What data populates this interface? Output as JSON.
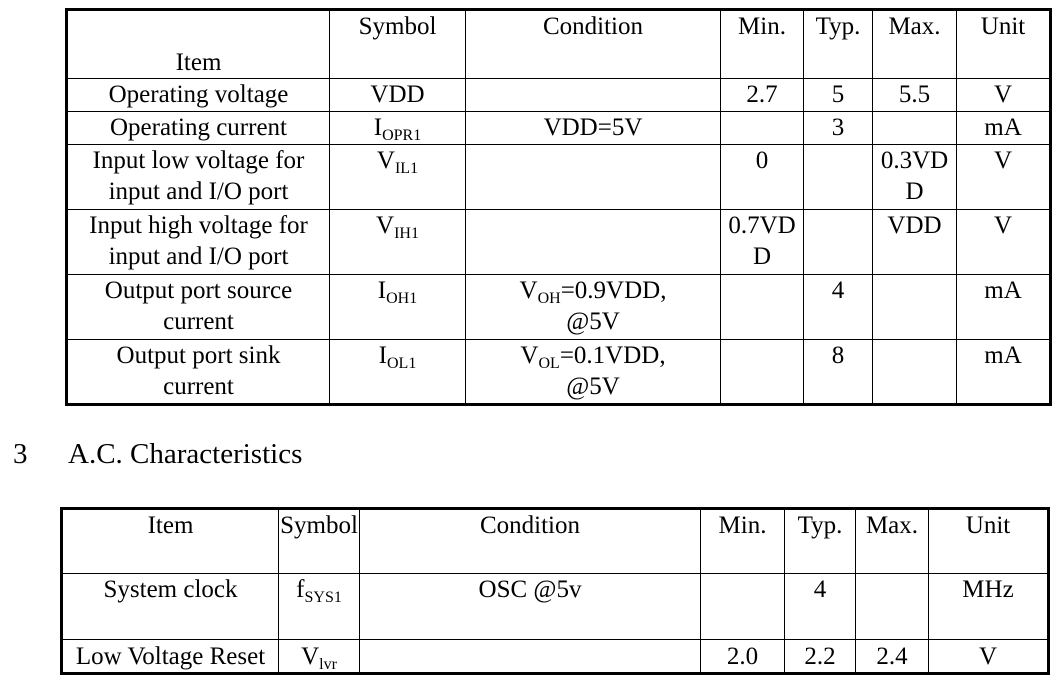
{
  "tables": [
    {
      "columns": [
        "Item",
        "Symbol",
        "Condition",
        "Min.",
        "Typ.",
        "Max.",
        "Unit"
      ],
      "rows": [
        [
          {
            "lines": [
              "Operating voltage"
            ]
          },
          {
            "base": "VDD"
          },
          null,
          "2.7",
          "5",
          "5.5",
          "V"
        ],
        [
          {
            "lines": [
              "Operating current"
            ]
          },
          {
            "base": "I",
            "sub": "OPR1"
          },
          {
            "lines": [
              "VDD=5V"
            ]
          },
          null,
          "3",
          null,
          "mA"
        ],
        [
          {
            "lines": [
              "Input low voltage for",
              "input and I/O port"
            ]
          },
          {
            "base": "V",
            "sub": "IL1"
          },
          null,
          "0",
          null,
          "0.3VDD",
          "V"
        ],
        [
          {
            "lines": [
              "Input high voltage for",
              "input and I/O port"
            ]
          },
          {
            "base": "V",
            "sub": "IH1"
          },
          null,
          "0.7VDD",
          null,
          "VDD",
          "V"
        ],
        [
          {
            "lines": [
              "Output port source",
              "current"
            ]
          },
          {
            "base": "I",
            "sub": "OH1"
          },
          {
            "base": "V",
            "sub": "OH",
            "lines": [
              "=0.9VDD,",
              "@5V"
            ]
          },
          null,
          "4",
          null,
          "mA"
        ],
        [
          {
            "lines": [
              "Output port sink",
              "current"
            ]
          },
          {
            "base": "I",
            "sub": "OL1"
          },
          {
            "base": "V",
            "sub": "OL",
            "lines": [
              "=0.1VDD,",
              "@5V"
            ]
          },
          null,
          "8",
          null,
          "mA"
        ]
      ]
    },
    {
      "columns": [
        "Item",
        "Symbol",
        "Condition",
        "Min.",
        "Typ.",
        "Max.",
        "Unit"
      ],
      "rows": [
        [
          {
            "lines": [
              "System clock"
            ]
          },
          {
            "base": "f",
            "sub": "SYS1"
          },
          {
            "lines": [
              "OSC @5v"
            ]
          },
          null,
          "4",
          null,
          "MHz"
        ],
        [
          {
            "lines": [
              "Low Voltage Reset"
            ]
          },
          {
            "base": "V",
            "sub": "lvr"
          },
          null,
          "2.0",
          "2.2",
          "2.4",
          "V"
        ]
      ]
    }
  ],
  "section": {
    "number": "3",
    "title": "A.C. Characteristics"
  }
}
